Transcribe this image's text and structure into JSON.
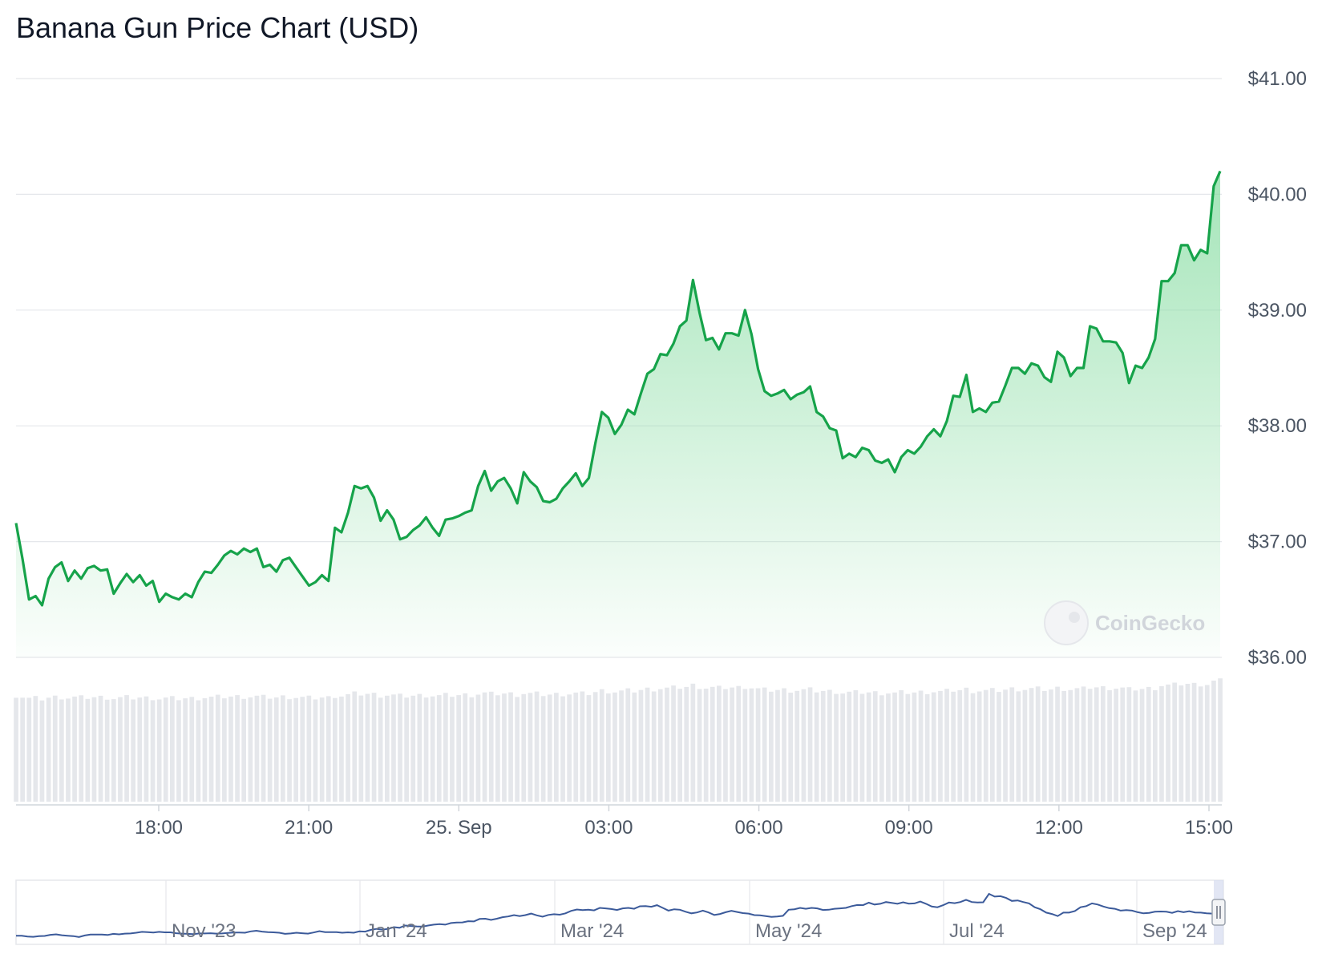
{
  "chart_data": {
    "type": "area",
    "title": "Banana Gun Price Chart (USD)",
    "currency": "USD",
    "ylim": [
      36.0,
      41.0
    ],
    "yticks": [
      "$36.00",
      "$37.00",
      "$38.00",
      "$39.00",
      "$40.00",
      "$41.00"
    ],
    "ytick_values": [
      36,
      37,
      38,
      39,
      40,
      41
    ],
    "xlim_hours": [
      -8.75,
      15.0
    ],
    "xticks": [
      "18:00",
      "21:00",
      "25. Sep",
      "03:00",
      "06:00",
      "09:00",
      "12:00",
      "15:00"
    ],
    "xtick_values_hours": [
      -6,
      -3,
      0,
      3,
      6,
      9,
      12,
      15
    ],
    "grid": true,
    "legend": "none",
    "colors": {
      "line": "#16a34a",
      "area_top": "#86dca1",
      "volume": "#e5e7eb",
      "navigator_line": "#3b5a9a",
      "grid": "#e5e7eb"
    },
    "series": [
      {
        "values": [
          37.16,
          36.85,
          36.5,
          36.53,
          36.45,
          36.68,
          36.78,
          36.82,
          36.66,
          36.75,
          36.68,
          36.77,
          36.79,
          36.75,
          36.76,
          36.55,
          36.64,
          36.72,
          36.65,
          36.71,
          36.62,
          36.66,
          36.48,
          36.55,
          36.52,
          36.5,
          36.55,
          36.52,
          36.65,
          36.74,
          36.73,
          36.8,
          36.88,
          36.92,
          36.89,
          36.94,
          36.91,
          36.94,
          36.78,
          36.8,
          36.74,
          36.84,
          36.86,
          36.78,
          36.7,
          36.62,
          36.65,
          36.71,
          36.66,
          37.12,
          37.08,
          37.25,
          37.48,
          37.46,
          37.48,
          37.38,
          37.18,
          37.27,
          37.19,
          37.02,
          37.04,
          37.1,
          37.14,
          37.21,
          37.12,
          37.05,
          37.19,
          37.2,
          37.22,
          37.25,
          37.27,
          37.48,
          37.61,
          37.44,
          37.52,
          37.55,
          37.46,
          37.33,
          37.6,
          37.52,
          37.47,
          37.35,
          37.34,
          37.37,
          37.46,
          37.52,
          37.59,
          37.48,
          37.55,
          37.85,
          38.12,
          38.07,
          37.93,
          38.01,
          38.14,
          38.1,
          38.28,
          38.45,
          38.49,
          38.62,
          38.61,
          38.71,
          38.86,
          38.91,
          39.26,
          38.98,
          38.74,
          38.76,
          38.66,
          38.8,
          38.8,
          38.78,
          39.0,
          38.79,
          38.49,
          38.3,
          38.26,
          38.28,
          38.31,
          38.23,
          38.27,
          38.29,
          38.34,
          38.12,
          38.08,
          37.98,
          37.96,
          37.72,
          37.76,
          37.73,
          37.81,
          37.79,
          37.7,
          37.68,
          37.71,
          37.6,
          37.73,
          37.79,
          37.76,
          37.82,
          37.91,
          37.97,
          37.91,
          38.04,
          38.26,
          38.25,
          38.44,
          38.12,
          38.15,
          38.12,
          38.2,
          38.21,
          38.35,
          38.5,
          38.5,
          38.45,
          38.54,
          38.52,
          38.42,
          38.38,
          38.64,
          38.59,
          38.43,
          38.5,
          38.5,
          38.86,
          38.84,
          38.73,
          38.73,
          38.72,
          38.63,
          38.37,
          38.52,
          38.5,
          38.59,
          38.75,
          39.25,
          39.25,
          39.32,
          39.56,
          39.56,
          39.43,
          39.52,
          39.49,
          40.07,
          40.2
        ],
        "count": 201
      }
    ],
    "watermark": "CoinGecko",
    "navigator": {
      "labels": [
        "Nov '23",
        "Jan '24",
        "Mar '24",
        "May '24",
        "Jul '24",
        "Sep '24"
      ],
      "values": [
        36.1,
        36.1,
        36.06,
        36.05,
        36.08,
        36.09,
        36.14,
        36.16,
        36.12,
        36.1,
        36.08,
        36.04,
        36.11,
        36.15,
        36.15,
        36.15,
        36.13,
        36.18,
        36.16,
        36.19,
        36.2,
        36.23,
        36.27,
        36.26,
        36.24,
        36.27,
        36.25,
        36.25,
        36.21,
        36.19,
        36.18,
        36.17,
        36.2,
        36.2,
        36.21,
        36.19,
        36.2,
        36.22,
        36.24,
        36.24,
        36.23,
        36.29,
        36.32,
        36.28,
        36.26,
        36.25,
        36.23,
        36.18,
        36.2,
        36.23,
        36.21,
        36.19,
        36.24,
        36.3,
        36.26,
        36.26,
        36.26,
        36.23,
        36.25,
        36.23,
        36.29,
        36.28,
        36.36,
        36.4,
        36.37,
        36.4,
        36.48,
        36.45,
        36.55,
        36.53,
        36.51,
        36.5,
        36.55,
        36.59,
        36.61,
        36.59,
        36.66,
        36.68,
        36.69,
        36.74,
        36.73,
        36.84,
        36.85,
        36.8,
        36.85,
        36.92,
        36.95,
        37.01,
        36.97,
        37.01,
        37.08,
        37.0,
        36.94,
        37.02,
        37.05,
        37.03,
        37.09,
        37.2,
        37.26,
        37.23,
        37.25,
        37.22,
        37.33,
        37.31,
        37.28,
        37.24,
        37.31,
        37.33,
        37.29,
        37.4,
        37.41,
        37.38,
        37.45,
        37.33,
        37.21,
        37.27,
        37.25,
        37.16,
        37.09,
        37.13,
        37.21,
        37.13,
        37.02,
        37.06,
        37.14,
        37.2,
        37.15,
        37.1,
        37.08,
        37.01,
        37.0,
        36.97,
        36.93,
        36.95,
        36.98,
        37.25,
        37.27,
        37.33,
        37.29,
        37.33,
        37.31,
        37.24,
        37.25,
        37.29,
        37.31,
        37.33,
        37.41,
        37.46,
        37.45,
        37.56,
        37.48,
        37.51,
        37.59,
        37.55,
        37.51,
        37.58,
        37.52,
        37.53,
        37.61,
        37.51,
        37.39,
        37.36,
        37.45,
        37.57,
        37.54,
        37.59,
        37.69,
        37.59,
        37.57,
        37.58,
        37.95,
        37.83,
        37.85,
        37.77,
        37.64,
        37.66,
        37.59,
        37.53,
        37.36,
        37.27,
        37.12,
        37.06,
        36.97,
        37.12,
        37.12,
        37.19,
        37.36,
        37.41,
        37.53,
        37.48,
        37.39,
        37.32,
        37.29,
        37.21,
        37.23,
        37.21,
        37.14,
        37.09,
        37.11,
        37.16,
        37.17,
        37.16,
        37.11,
        37.19,
        37.14,
        37.18,
        37.13,
        37.12,
        37.09,
        37.08
      ]
    }
  }
}
